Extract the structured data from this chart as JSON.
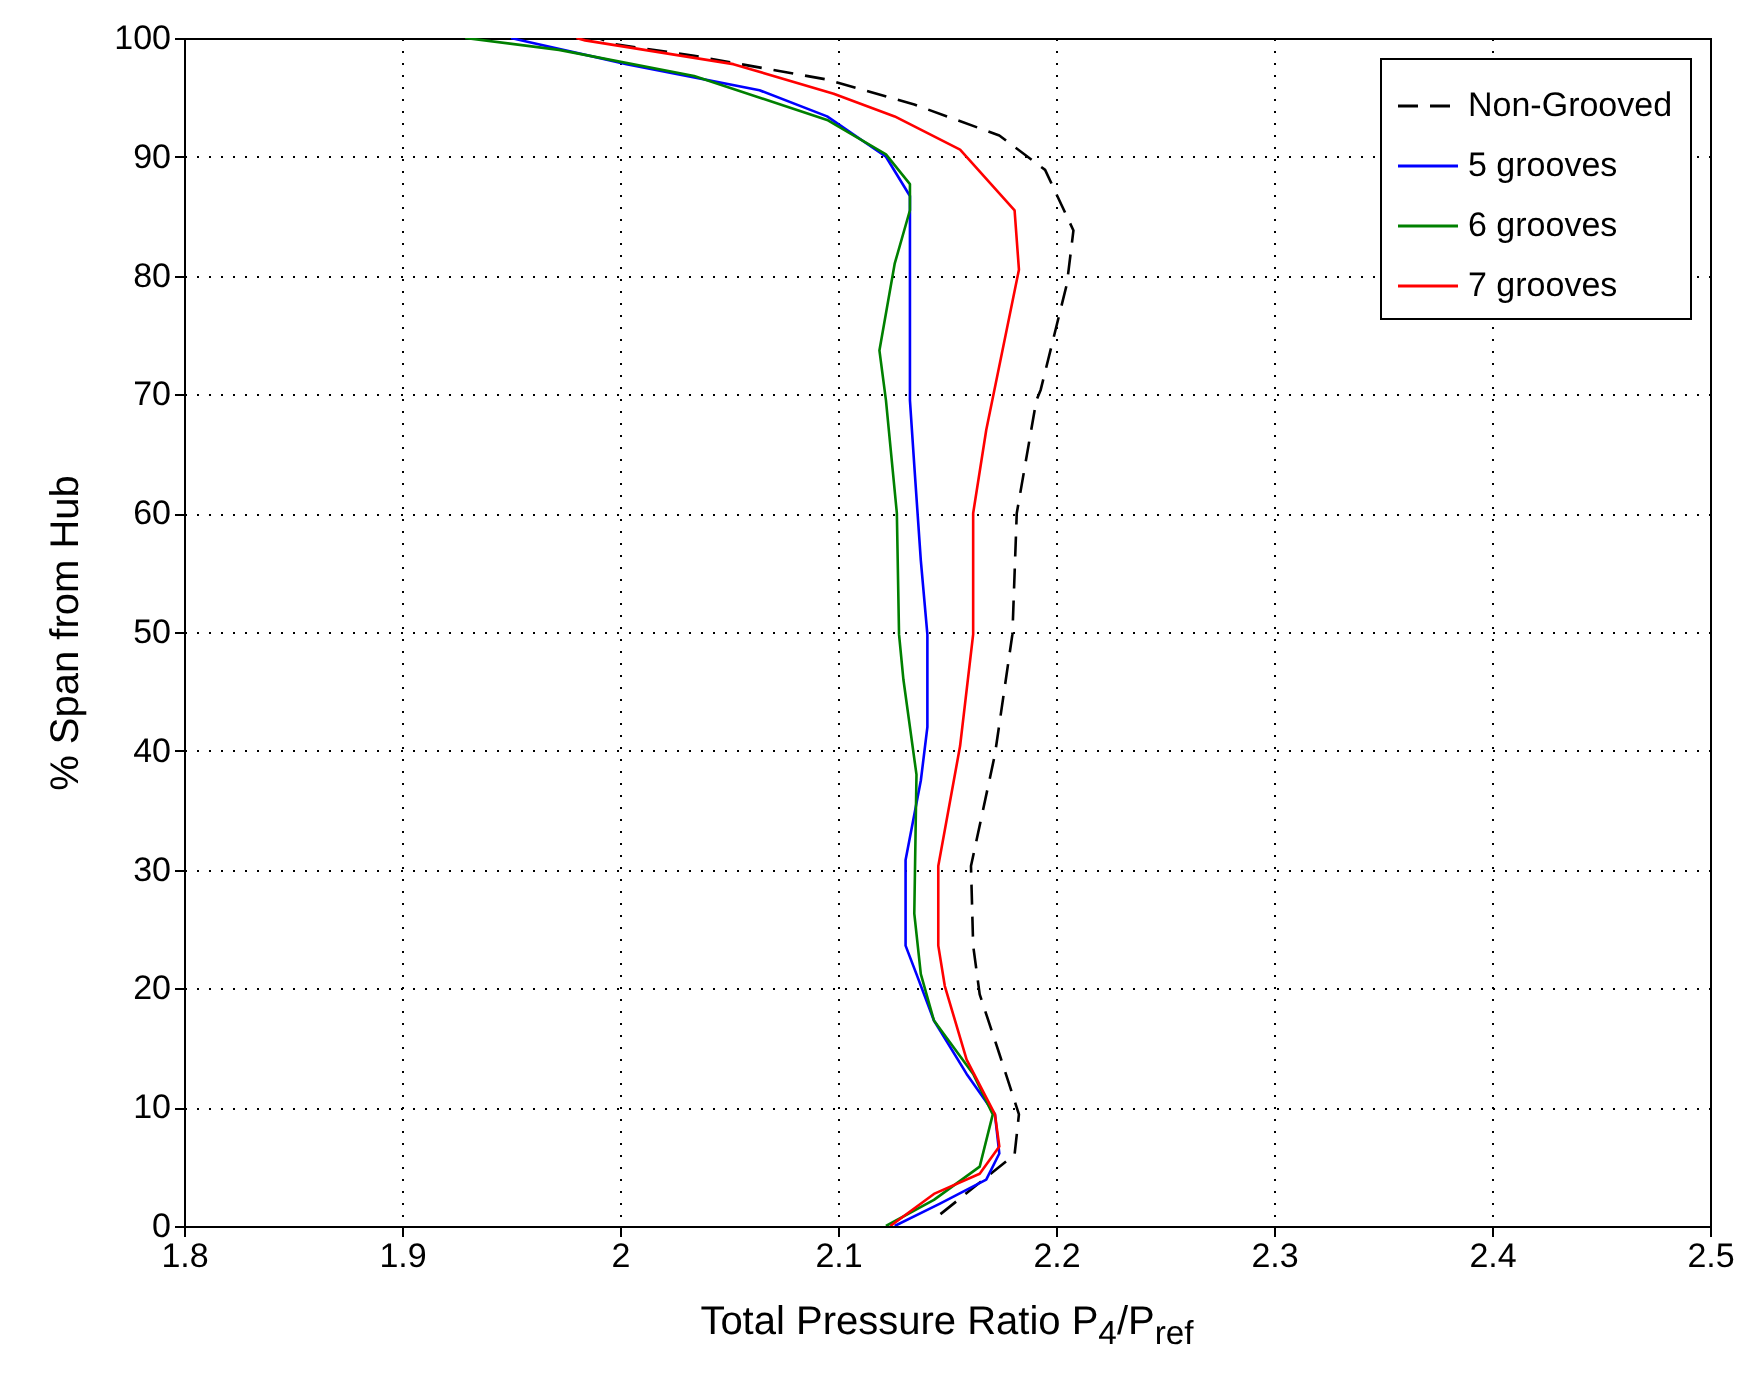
{
  "chart_data": {
    "type": "line",
    "xlabel": "Total Pressure Ratio P$_{4}$/P$_{ref}$",
    "ylabel": "% Span from Hub",
    "xlim": [
      1.8,
      2.5
    ],
    "xticks": [
      1.8,
      1.9,
      2,
      2.1,
      2.2,
      2.3,
      2.4,
      2.5
    ],
    "ylim": [
      0,
      100
    ],
    "yticks": [
      0,
      10,
      20,
      30,
      40,
      50,
      60,
      70,
      80,
      90,
      100
    ],
    "grid": true,
    "legend": "top right",
    "series": [
      {
        "name": "Non-Grooved",
        "color": "#000000",
        "line_style": "dashed",
        "x": [
          2.147,
          2.181,
          2.183,
          2.174,
          2.165,
          2.162,
          2.161,
          2.172,
          2.18,
          2.182,
          2.191,
          2.193,
          2.205,
          2.208,
          2.195,
          2.174,
          2.135,
          2.095,
          2.034,
          1.997,
          1.99
        ],
        "values": [
          1,
          6,
          9.4,
          14.5,
          19.5,
          23.6,
          30.3,
          39.7,
          49.8,
          60,
          69.5,
          70.4,
          79.3,
          83.8,
          88.9,
          91.8,
          94.4,
          96.5,
          98.5,
          99.5,
          100
        ]
      },
      {
        "name": "5 grooves",
        "color": "#0000ff",
        "line_style": "solid",
        "x": [
          2.126,
          2.147,
          2.168,
          2.174,
          2.172,
          2.159,
          2.144,
          2.136,
          2.131,
          2.131,
          2.138,
          2.141,
          2.141,
          2.138,
          2.135,
          2.133,
          2.133,
          2.133,
          2.122,
          2.095,
          2.064,
          2.003,
          1.957,
          1.95
        ],
        "values": [
          0,
          1.9,
          3.9,
          6.1,
          9.4,
          12.8,
          17.3,
          21.2,
          23.6,
          30.8,
          37.5,
          42,
          49.8,
          56,
          64,
          69.5,
          76.6,
          86.7,
          90,
          93.4,
          95.6,
          97.8,
          99.7,
          100
        ]
      },
      {
        "name": "6 grooves",
        "color": "#008000",
        "line_style": "solid",
        "x": [
          2.122,
          2.144,
          2.165,
          2.171,
          2.162,
          2.144,
          2.138,
          2.135,
          2.136,
          2.13,
          2.128,
          2.127,
          2.122,
          2.119,
          2.126,
          2.133,
          2.133,
          2.122,
          2.095,
          2.034,
          1.972,
          1.929
        ],
        "values": [
          0,
          2.2,
          5,
          9.4,
          12.8,
          17.3,
          21.2,
          26.3,
          38,
          46,
          49.8,
          60,
          69.5,
          73.7,
          81,
          85.5,
          87.7,
          90.2,
          93.1,
          96.8,
          99,
          100
        ]
      },
      {
        "name": "7 grooves",
        "color": "#ff0000",
        "line_style": "solid",
        "x": [
          2.124,
          2.144,
          2.165,
          2.174,
          2.172,
          2.159,
          2.149,
          2.146,
          2.146,
          2.156,
          2.162,
          2.162,
          2.168,
          2.183,
          2.181,
          2.156,
          2.126,
          2.098,
          2.052,
          1.984,
          1.98
        ],
        "values": [
          0,
          2.7,
          4.4,
          6.7,
          9.4,
          14,
          20.2,
          23.6,
          30.3,
          40.4,
          49.8,
          60,
          67,
          80.5,
          85.5,
          90.6,
          93.4,
          95.3,
          97.8,
          99.8,
          100
        ]
      }
    ]
  }
}
